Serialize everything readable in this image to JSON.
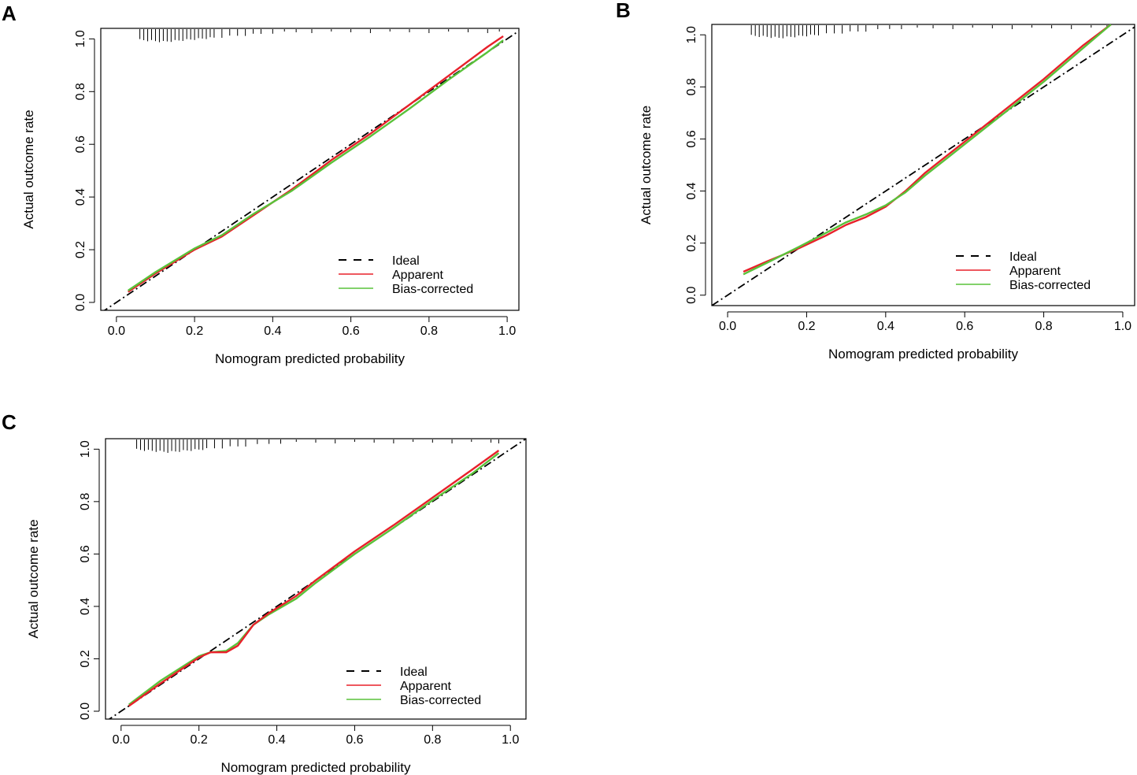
{
  "colors": {
    "ideal": "#000000",
    "apparent": "#e8202a",
    "bias_corrected": "#59c23a",
    "frame": "#000000"
  },
  "chart_data": [
    {
      "panel": "A",
      "type": "line",
      "xlabel": "Nomogram predicted probability",
      "ylabel": "Actual outcome rate",
      "xlim": [
        -0.04,
        1.03
      ],
      "ylim": [
        -0.03,
        1.04
      ],
      "xticks": [
        "0.0",
        "0.2",
        "0.4",
        "0.6",
        "0.8",
        "1.0"
      ],
      "yticks": [
        "0.0",
        "0.2",
        "0.4",
        "0.6",
        "0.8",
        "1.0"
      ],
      "legend": {
        "position": "bottom-right",
        "entries": [
          "Ideal",
          "Apparent",
          "Bias-corrected"
        ]
      },
      "series": [
        {
          "name": "Ideal",
          "x": [
            -0.04,
            1.03
          ],
          "y": [
            -0.04,
            1.03
          ]
        },
        {
          "name": "Apparent",
          "x": [
            0.03,
            0.1,
            0.2,
            0.27,
            0.35,
            0.45,
            0.55,
            0.65,
            0.75,
            0.85,
            0.95,
            0.99
          ],
          "y": [
            0.04,
            0.11,
            0.2,
            0.25,
            0.33,
            0.43,
            0.54,
            0.64,
            0.75,
            0.86,
            0.97,
            1.01
          ]
        },
        {
          "name": "Bias-corrected",
          "x": [
            0.03,
            0.1,
            0.2,
            0.27,
            0.35,
            0.45,
            0.55,
            0.65,
            0.75,
            0.85,
            0.95,
            0.99
          ],
          "y": [
            0.045,
            0.115,
            0.205,
            0.255,
            0.335,
            0.425,
            0.53,
            0.63,
            0.735,
            0.845,
            0.95,
            0.995
          ]
        }
      ],
      "rug": [
        0.06,
        0.07,
        0.08,
        0.09,
        0.1,
        0.11,
        0.12,
        0.13,
        0.14,
        0.15,
        0.16,
        0.17,
        0.18,
        0.19,
        0.2,
        0.21,
        0.22,
        0.23,
        0.24,
        0.25,
        0.27,
        0.29,
        0.31,
        0.33,
        0.35,
        0.37,
        0.4,
        0.43,
        0.46,
        0.5,
        0.55,
        0.6,
        0.65,
        0.7,
        0.75,
        0.8,
        0.85,
        0.9,
        0.95,
        0.98
      ]
    },
    {
      "panel": "B",
      "type": "line",
      "xlabel": "Nomogram predicted probability",
      "ylabel": "Actual outcome rate",
      "xlim": [
        -0.04,
        1.03
      ],
      "ylim": [
        -0.04,
        1.04
      ],
      "xticks": [
        "0.0",
        "0.2",
        "0.4",
        "0.6",
        "0.8",
        "1.0"
      ],
      "yticks": [
        "0.0",
        "0.2",
        "0.4",
        "0.6",
        "0.8",
        "1.0"
      ],
      "legend": {
        "position": "bottom-right",
        "entries": [
          "Ideal",
          "Apparent",
          "Bias-corrected"
        ]
      },
      "series": [
        {
          "name": "Ideal",
          "x": [
            -0.04,
            1.03
          ],
          "y": [
            -0.04,
            1.03
          ]
        },
        {
          "name": "Apparent",
          "x": [
            0.04,
            0.1,
            0.18,
            0.25,
            0.3,
            0.35,
            0.4,
            0.45,
            0.5,
            0.55,
            0.6,
            0.65,
            0.7,
            0.8,
            0.9,
            0.97
          ],
          "y": [
            0.09,
            0.13,
            0.18,
            0.23,
            0.27,
            0.3,
            0.34,
            0.4,
            0.47,
            0.53,
            0.59,
            0.65,
            0.71,
            0.83,
            0.96,
            1.04
          ]
        },
        {
          "name": "Bias-corrected",
          "x": [
            0.04,
            0.1,
            0.18,
            0.25,
            0.3,
            0.35,
            0.4,
            0.45,
            0.5,
            0.55,
            0.6,
            0.65,
            0.7,
            0.8,
            0.9,
            0.97
          ],
          "y": [
            0.08,
            0.125,
            0.185,
            0.24,
            0.28,
            0.31,
            0.345,
            0.395,
            0.46,
            0.52,
            0.58,
            0.64,
            0.7,
            0.82,
            0.95,
            1.04
          ]
        }
      ],
      "rug": [
        0.06,
        0.07,
        0.08,
        0.09,
        0.1,
        0.11,
        0.12,
        0.13,
        0.14,
        0.15,
        0.16,
        0.17,
        0.18,
        0.19,
        0.2,
        0.21,
        0.22,
        0.23,
        0.25,
        0.27,
        0.29,
        0.31,
        0.33,
        0.35,
        0.38,
        0.41,
        0.44,
        0.48,
        0.52,
        0.57,
        0.62,
        0.67,
        0.72,
        0.77,
        0.82,
        0.87,
        0.92,
        0.96
      ]
    },
    {
      "panel": "C",
      "type": "line",
      "xlabel": "Nomogram predicted probability",
      "ylabel": "Actual outcome rate",
      "xlim": [
        -0.04,
        1.04
      ],
      "ylim": [
        -0.03,
        1.04
      ],
      "xticks": [
        "0.0",
        "0.2",
        "0.4",
        "0.6",
        "0.8",
        "1.0"
      ],
      "yticks": [
        "0.0",
        "0.2",
        "0.4",
        "0.6",
        "0.8",
        "1.0"
      ],
      "legend": {
        "position": "bottom-right",
        "entries": [
          "Ideal",
          "Apparent",
          "Bias-corrected"
        ]
      },
      "series": [
        {
          "name": "Ideal",
          "x": [
            -0.04,
            1.04
          ],
          "y": [
            -0.04,
            1.04
          ]
        },
        {
          "name": "Bias-corrected",
          "x": [
            0.02,
            0.1,
            0.2,
            0.23,
            0.27,
            0.3,
            0.34,
            0.38,
            0.45,
            0.5,
            0.6,
            0.7,
            0.8,
            0.9,
            0.97
          ],
          "y": [
            0.025,
            0.115,
            0.21,
            0.225,
            0.23,
            0.26,
            0.33,
            0.37,
            0.43,
            0.49,
            0.6,
            0.7,
            0.805,
            0.905,
            0.985
          ]
        },
        {
          "name": "Apparent",
          "x": [
            0.02,
            0.1,
            0.2,
            0.23,
            0.27,
            0.3,
            0.34,
            0.38,
            0.45,
            0.5,
            0.6,
            0.7,
            0.8,
            0.9,
            0.97
          ],
          "y": [
            0.02,
            0.105,
            0.205,
            0.225,
            0.225,
            0.25,
            0.33,
            0.375,
            0.44,
            0.5,
            0.61,
            0.71,
            0.815,
            0.92,
            0.995
          ]
        }
      ],
      "rug": [
        0.04,
        0.05,
        0.06,
        0.07,
        0.08,
        0.09,
        0.1,
        0.11,
        0.12,
        0.13,
        0.14,
        0.15,
        0.16,
        0.17,
        0.18,
        0.19,
        0.2,
        0.21,
        0.22,
        0.24,
        0.26,
        0.28,
        0.3,
        0.32,
        0.35,
        0.38,
        0.41,
        0.45,
        0.5,
        0.55,
        0.6,
        0.65,
        0.7,
        0.75,
        0.8,
        0.85,
        0.9,
        0.95,
        0.97
      ]
    }
  ]
}
